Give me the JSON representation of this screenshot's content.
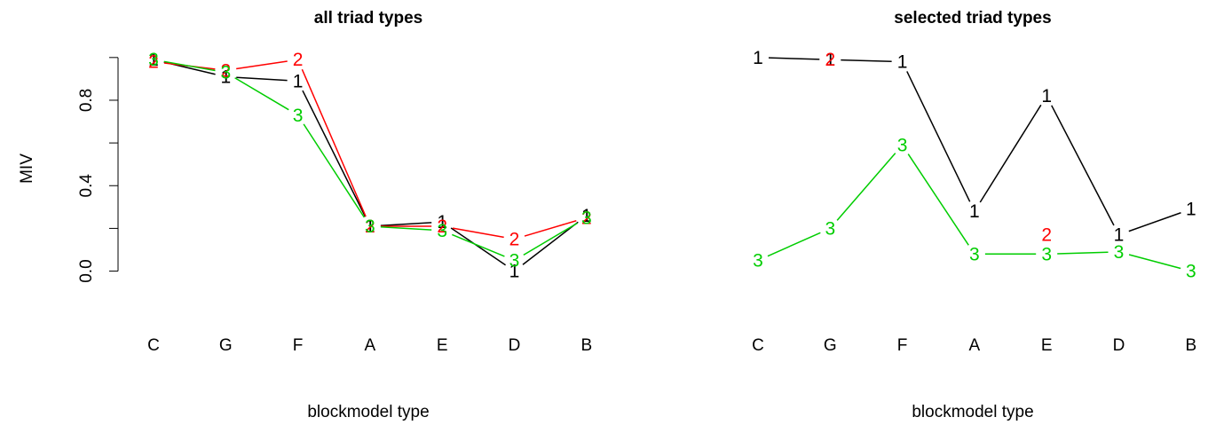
{
  "chart_data": [
    {
      "type": "line",
      "title": "all triad types",
      "xlabel": "blockmodel type",
      "ylabel": "MIV",
      "categories": [
        "C",
        "G",
        "F",
        "A",
        "E",
        "D",
        "B"
      ],
      "yticks": [
        "0.0",
        "0.4",
        "0.8"
      ],
      "ylim": [
        -0.06,
        1.02
      ],
      "show_yaxis": true,
      "series": [
        {
          "marker": "1",
          "color": "#000000",
          "values": [
            0.99,
            0.91,
            0.89,
            0.21,
            0.23,
            0.0,
            0.26
          ]
        },
        {
          "marker": "2",
          "color": "#ff0000",
          "values": [
            0.98,
            0.94,
            0.99,
            0.21,
            0.21,
            0.15,
            0.25
          ]
        },
        {
          "marker": "3",
          "color": "#00cd00",
          "values": [
            0.99,
            0.93,
            0.73,
            0.21,
            0.19,
            0.05,
            0.25
          ]
        }
      ]
    },
    {
      "type": "line",
      "title": "selected triad types",
      "xlabel": "blockmodel type",
      "ylabel": "",
      "categories": [
        "C",
        "G",
        "F",
        "A",
        "E",
        "D",
        "B"
      ],
      "yticks": [],
      "ylim": [
        -0.06,
        1.02
      ],
      "show_yaxis": false,
      "series": [
        {
          "marker": "1",
          "color": "#000000",
          "values": [
            1.0,
            0.99,
            0.98,
            0.28,
            0.82,
            0.17,
            0.29
          ]
        },
        {
          "marker": "2",
          "color": "#ff0000",
          "values": [
            null,
            0.99,
            null,
            null,
            0.17,
            null,
            null
          ]
        },
        {
          "marker": "3",
          "color": "#00cd00",
          "values": [
            0.05,
            0.2,
            0.59,
            0.08,
            0.08,
            0.09,
            0.0
          ]
        }
      ]
    }
  ]
}
